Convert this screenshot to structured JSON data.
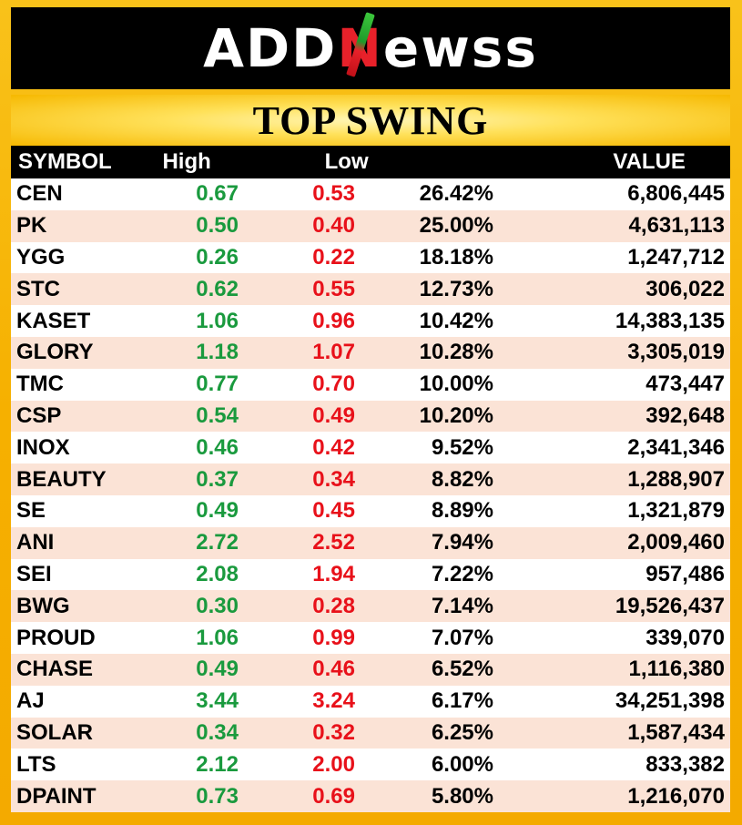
{
  "logo": {
    "part1": "ADD",
    "n": "N",
    "part2": "ewss"
  },
  "title": "TOP SWING",
  "columns": {
    "symbol": "SYMBOL",
    "high": "High",
    "low": "Low",
    "pct": "",
    "value": "VALUE"
  },
  "colors": {
    "high": "#1a9a3e",
    "low": "#e8111a",
    "header_bg": "#000000",
    "frame": "#f6b000",
    "row_alt": "#fbe3d6"
  },
  "rows": [
    {
      "symbol": "CEN",
      "high": "0.67",
      "low": "0.53",
      "pct": "26.42%",
      "value": "6,806,445"
    },
    {
      "symbol": "PK",
      "high": "0.50",
      "low": "0.40",
      "pct": "25.00%",
      "value": "4,631,113"
    },
    {
      "symbol": "YGG",
      "high": "0.26",
      "low": "0.22",
      "pct": "18.18%",
      "value": "1,247,712"
    },
    {
      "symbol": "STC",
      "high": "0.62",
      "low": "0.55",
      "pct": "12.73%",
      "value": "306,022"
    },
    {
      "symbol": "KASET",
      "high": "1.06",
      "low": "0.96",
      "pct": "10.42%",
      "value": "14,383,135"
    },
    {
      "symbol": "GLORY",
      "high": "1.18",
      "low": "1.07",
      "pct": "10.28%",
      "value": "3,305,019"
    },
    {
      "symbol": "TMC",
      "high": "0.77",
      "low": "0.70",
      "pct": "10.00%",
      "value": "473,447"
    },
    {
      "symbol": "CSP",
      "high": "0.54",
      "low": "0.49",
      "pct": "10.20%",
      "value": "392,648"
    },
    {
      "symbol": "INOX",
      "high": "0.46",
      "low": "0.42",
      "pct": "9.52%",
      "value": "2,341,346"
    },
    {
      "symbol": "BEAUTY",
      "high": "0.37",
      "low": "0.34",
      "pct": "8.82%",
      "value": "1,288,907"
    },
    {
      "symbol": "SE",
      "high": "0.49",
      "low": "0.45",
      "pct": "8.89%",
      "value": "1,321,879"
    },
    {
      "symbol": "ANI",
      "high": "2.72",
      "low": "2.52",
      "pct": "7.94%",
      "value": "2,009,460"
    },
    {
      "symbol": "SEI",
      "high": "2.08",
      "low": "1.94",
      "pct": "7.22%",
      "value": "957,486"
    },
    {
      "symbol": "BWG",
      "high": "0.30",
      "low": "0.28",
      "pct": "7.14%",
      "value": "19,526,437"
    },
    {
      "symbol": "PROUD",
      "high": "1.06",
      "low": "0.99",
      "pct": "7.07%",
      "value": "339,070"
    },
    {
      "symbol": "CHASE",
      "high": "0.49",
      "low": "0.46",
      "pct": "6.52%",
      "value": "1,116,380"
    },
    {
      "symbol": "AJ",
      "high": "3.44",
      "low": "3.24",
      "pct": "6.17%",
      "value": "34,251,398"
    },
    {
      "symbol": "SOLAR",
      "high": "0.34",
      "low": "0.32",
      "pct": "6.25%",
      "value": "1,587,434"
    },
    {
      "symbol": "LTS",
      "high": "2.12",
      "low": "2.00",
      "pct": "6.00%",
      "value": "833,382"
    },
    {
      "symbol": "DPAINT",
      "high": "0.73",
      "low": "0.69",
      "pct": "5.80%",
      "value": "1,216,070"
    }
  ]
}
